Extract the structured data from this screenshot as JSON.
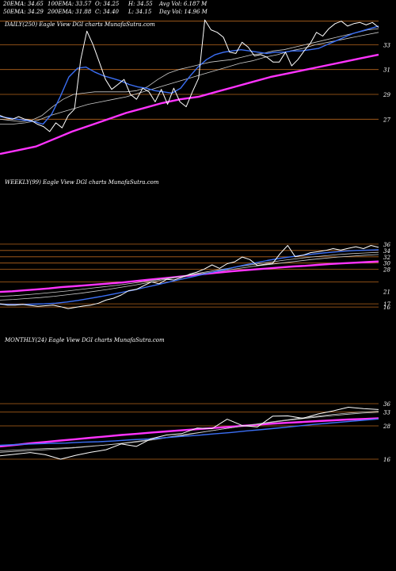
{
  "header": {
    "row1": [
      "20EMA: 34.65",
      "100EMA: 33.57",
      "O: 34.25",
      "H: 34.55",
      "Avg Vol: 6.187 M"
    ],
    "row2": [
      "50EMA: 34.29",
      "200EMA: 31.88",
      "C: 34.40",
      "L: 34.15",
      "Day Vol: 14.96 M"
    ]
  },
  "colors": {
    "background": "#000000",
    "price": "#ffffff",
    "ema20": "#3b6ff5",
    "ema200": "#ff33ff",
    "guideline": "#b5651d",
    "ema_band": "#cccccc"
  },
  "chart_data": [
    {
      "type": "line",
      "title": "DAILY(250) Eagle  View  DGI charts MunafaSutra.com",
      "y_ticks": [
        33,
        31,
        29,
        27
      ],
      "ylim": [
        23.5,
        35.2
      ],
      "x_count": 250,
      "guidelines": [
        34.9,
        33,
        31,
        29,
        27
      ],
      "series": [
        {
          "role": "price",
          "values": [
            27.3,
            27.1,
            27.0,
            27.2,
            27.0,
            26.9,
            26.6,
            26.4,
            26.0,
            26.7,
            26.3,
            27.3,
            27.8,
            31.8,
            34.1,
            33.0,
            31.6,
            30.2,
            29.4,
            29.8,
            30.2,
            29.0,
            28.6,
            29.5,
            29.2,
            28.4,
            29.4,
            28.2,
            29.5,
            28.4,
            28.0,
            29.2,
            30.3,
            35.0,
            34.2,
            34.0,
            33.6,
            32.4,
            32.3,
            33.2,
            32.8,
            32.1,
            32.2,
            32.0,
            31.6,
            31.6,
            32.4,
            31.3,
            31.8,
            32.5,
            33.1,
            34.0,
            33.7,
            34.3,
            34.7,
            34.9,
            34.5,
            34.7,
            34.8,
            34.6,
            34.8,
            34.4
          ]
        },
        {
          "role": "ema20",
          "values": [
            27.2,
            27.1,
            27.0,
            26.9,
            26.8,
            26.6,
            27.4,
            28.8,
            30.4,
            31.1,
            31.2,
            30.8,
            30.5,
            30.3,
            30.1,
            29.8,
            29.6,
            29.5,
            29.3,
            29.2,
            29.1,
            29.5,
            30.4,
            31.2,
            31.8,
            32.2,
            32.4,
            32.5,
            32.6,
            32.5,
            32.4,
            32.3,
            32.4,
            32.4,
            32.5,
            32.5,
            32.6,
            32.7,
            33.0,
            33.3,
            33.6,
            33.9,
            34.1,
            34.3,
            34.5
          ]
        },
        {
          "role": "ema50",
          "values": [
            27.0,
            26.9,
            26.8,
            26.9,
            27.3,
            28.0,
            28.6,
            29.0,
            29.1,
            29.2,
            29.2,
            29.2,
            29.2,
            29.3,
            29.6,
            30.2,
            30.7,
            31.0,
            31.2,
            31.4,
            31.6,
            31.7,
            31.8,
            32.0,
            32.2,
            32.3,
            32.5,
            32.6,
            32.8,
            33.0,
            33.2,
            33.4,
            33.6,
            33.8,
            34.0,
            34.2,
            34.3
          ]
        },
        {
          "role": "ema100",
          "values": [
            26.6,
            26.6,
            26.7,
            26.9,
            27.3,
            27.6,
            27.9,
            28.2,
            28.4,
            28.6,
            28.8,
            29.1,
            29.4,
            29.7,
            30.0,
            30.3,
            30.6,
            30.9,
            31.2,
            31.5,
            31.7,
            32.0,
            32.2,
            32.5,
            32.7,
            33.0,
            33.2,
            33.4,
            33.6,
            33.8,
            34.0
          ]
        },
        {
          "role": "ema200",
          "values": [
            24.2,
            24.5,
            24.8,
            25.4,
            26.0,
            26.5,
            27.0,
            27.5,
            27.9,
            28.3,
            28.6,
            28.8,
            29.2,
            29.6,
            30.0,
            30.4,
            30.7,
            31.0,
            31.3,
            31.6,
            31.9,
            32.2
          ]
        }
      ]
    },
    {
      "type": "line",
      "title": "WEEKLY(99) Eagle  View  DGI charts MunafaSutra.com",
      "y_ticks": [
        36,
        34,
        32,
        30,
        28,
        21,
        17,
        16
      ],
      "ylim": [
        14,
        38
      ],
      "x_count": 99,
      "guidelines": [
        36,
        34,
        32,
        30,
        28,
        24,
        17,
        16
      ],
      "series": [
        {
          "role": "price",
          "values": [
            17.0,
            16.6,
            16.6,
            16.8,
            16.5,
            16.2,
            16.4,
            16.6,
            16.1,
            15.5,
            15.9,
            16.3,
            16.6,
            17.2,
            18.2,
            18.8,
            19.8,
            21.2,
            21.6,
            22.8,
            24.0,
            23.4,
            24.8,
            24.6,
            25.4,
            26.4,
            27.1,
            28.1,
            29.4,
            28.3,
            29.8,
            30.4,
            31.9,
            31.1,
            29.2,
            29.6,
            29.9,
            33.0,
            35.6,
            32.0,
            32.5,
            33.3,
            33.6,
            34.0,
            34.6,
            34.1,
            34.7,
            35.2,
            34.6,
            35.6,
            35.0
          ]
        },
        {
          "role": "ema20",
          "values": [
            16.9,
            16.8,
            16.8,
            16.9,
            17.0,
            17.2,
            17.6,
            18.1,
            18.7,
            19.3,
            20.0,
            20.7,
            21.4,
            22.2,
            23.0,
            23.8,
            24.6,
            25.4,
            26.2,
            27.0,
            27.8,
            28.6,
            29.4,
            30.1,
            30.8,
            31.4,
            31.9,
            32.4,
            32.8,
            33.2,
            33.5,
            33.8,
            34.0,
            34.1,
            34.2
          ]
        },
        {
          "role": "ema50",
          "values": [
            18.2,
            18.4,
            18.7,
            19.0,
            19.4,
            19.9,
            20.4,
            21.0,
            21.6,
            22.3,
            23.0,
            23.8,
            24.6,
            25.4,
            26.2,
            27.0,
            27.7,
            28.4,
            29.1,
            29.7,
            30.3,
            30.9,
            31.4,
            31.9,
            32.3,
            32.7,
            33.0,
            33.2,
            33.4
          ]
        },
        {
          "role": "ema100",
          "values": [
            19.4,
            19.6,
            19.9,
            20.3,
            20.7,
            21.1,
            21.6,
            22.1,
            22.6,
            23.1,
            23.7,
            24.3,
            24.9,
            25.5,
            26.1,
            26.7,
            27.3,
            27.9,
            28.5,
            29.1,
            29.6,
            30.1,
            30.6,
            31.1,
            31.5,
            31.9,
            32.2,
            32.5,
            32.7
          ]
        },
        {
          "role": "ema200",
          "values": [
            20.8,
            21.0,
            21.3,
            21.6,
            21.9,
            22.3,
            22.6,
            22.9,
            23.2,
            23.5,
            23.8,
            24.2,
            24.6,
            25.0,
            25.4,
            25.8,
            26.2,
            26.6,
            27.0,
            27.4,
            27.7,
            28.0,
            28.3,
            28.6,
            28.9,
            29.1,
            29.4,
            29.7,
            29.9,
            30.1,
            30.3,
            30.5
          ]
        }
      ]
    },
    {
      "type": "line",
      "title": "MONTHLY(24) Eagle  View  DGI charts MunafaSutra.com",
      "y_ticks": [
        36,
        33,
        28,
        16
      ],
      "ylim": [
        10,
        40
      ],
      "x_count": 24,
      "guidelines": [
        36,
        33,
        28,
        16
      ],
      "series": [
        {
          "role": "price",
          "values": [
            17.2,
            17.8,
            18.4,
            17.6,
            16.0,
            17.4,
            18.5,
            19.4,
            21.5,
            20.6,
            23.4,
            24.7,
            25.2,
            27.2,
            27.0,
            30.4,
            28.1,
            27.6,
            31.5,
            31.6,
            30.7,
            32.3,
            33.4,
            34.7,
            34.2,
            33.9
          ]
        },
        {
          "role": "ema20",
          "values": [
            21.0,
            21.3,
            21.5,
            21.7,
            21.8,
            22.1,
            22.3,
            22.6,
            23.0,
            23.3,
            23.7,
            24.2,
            24.6,
            25.1,
            25.6,
            26.2,
            26.7,
            27.3,
            27.9,
            28.5,
            29.0,
            29.5,
            30.0,
            30.5
          ]
        },
        {
          "role": "ema50",
          "values": [
            19.0,
            19.3,
            19.6,
            19.8,
            20.0,
            20.3,
            20.7,
            21.1,
            21.6,
            22.2,
            22.9,
            23.7,
            24.5,
            25.4,
            26.3,
            27.1,
            27.9,
            28.7,
            29.5,
            30.2,
            30.9,
            31.5,
            32.1,
            32.6,
            33.0,
            33.3
          ]
        },
        {
          "role": "ema100",
          "values": [
            18.5,
            18.8,
            19.1,
            19.4,
            19.7,
            20.1,
            20.6,
            21.1,
            21.7,
            22.4,
            23.1,
            23.9,
            24.7,
            25.5,
            26.3,
            27.1,
            27.9,
            28.6,
            29.3,
            30.0,
            30.6,
            31.2,
            31.7,
            32.2,
            32.6,
            32.9
          ]
        },
        {
          "role": "ema200",
          "values": [
            20.6,
            21.1,
            21.7,
            22.2,
            22.7,
            23.2,
            23.7,
            24.2,
            24.7,
            25.1,
            25.6,
            26.0,
            26.4,
            26.8,
            27.2,
            27.6,
            28.0,
            28.4,
            28.8,
            29.1,
            29.4,
            29.7,
            30.0,
            30.3,
            30.5,
            30.7
          ]
        }
      ]
    }
  ]
}
